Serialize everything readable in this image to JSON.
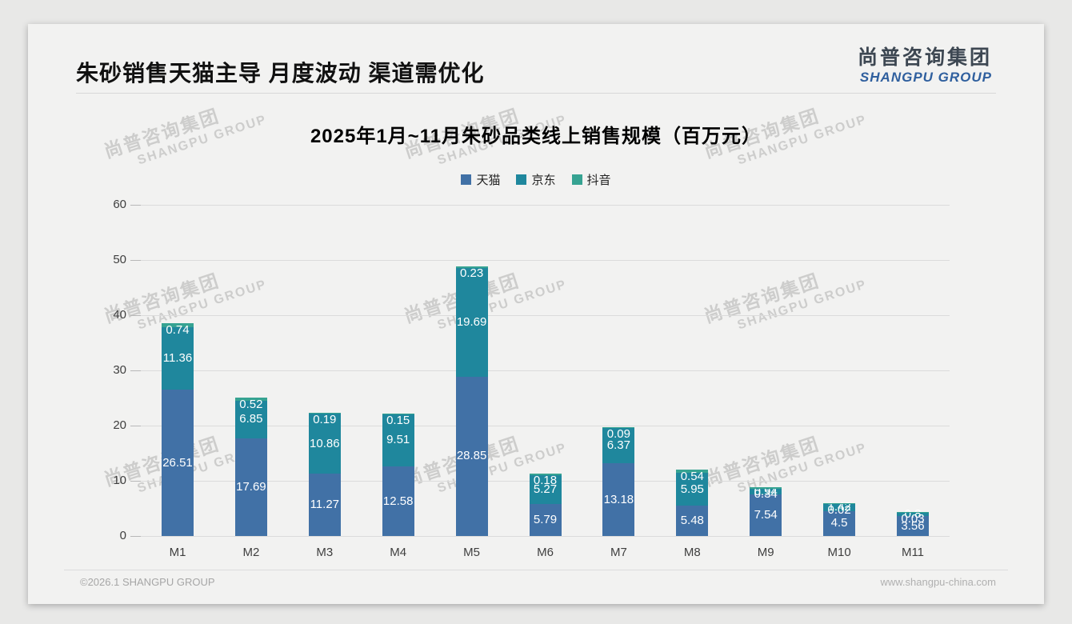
{
  "header": {
    "title": "朱砂销售天猫主导 月度波动 渠道需优化",
    "logo_cn": "尚普咨询集团",
    "logo_en": "SHANGPU GROUP"
  },
  "watermark": {
    "cn": "尚普咨询集团",
    "en": "SHANGPU GROUP"
  },
  "footer": {
    "left": "©2026.1 SHANGPU GROUP",
    "right": "www.shangpu-china.com"
  },
  "chart_data": {
    "type": "bar",
    "stacked": true,
    "title": "2025年1月~11月朱砂品类线上销售规模（百万元）",
    "categories": [
      "M1",
      "M2",
      "M3",
      "M4",
      "M5",
      "M6",
      "M7",
      "M8",
      "M9",
      "M10",
      "M11"
    ],
    "series": [
      {
        "name": "天猫",
        "color": "#4171a6",
        "values": [
          26.51,
          17.69,
          11.27,
          12.58,
          28.85,
          5.79,
          13.18,
          5.48,
          7.54,
          4.5,
          3.56
        ]
      },
      {
        "name": "京东",
        "color": "#1f879d",
        "values": [
          11.36,
          6.85,
          10.86,
          9.51,
          19.69,
          5.27,
          6.37,
          5.95,
          0.94,
          1.42,
          0.8
        ]
      },
      {
        "name": "抖音",
        "color": "#36a392",
        "values": [
          0.74,
          0.52,
          0.19,
          0.15,
          0.23,
          0.18,
          0.09,
          0.54,
          0.34,
          0.02,
          0.03
        ]
      }
    ],
    "ylabel": "",
    "xlabel": "",
    "ylim": [
      0,
      60
    ],
    "yticks": [
      0,
      10,
      20,
      30,
      40,
      50,
      60
    ],
    "grid": true,
    "legend_position": "top",
    "value_labels": "inside-white"
  }
}
